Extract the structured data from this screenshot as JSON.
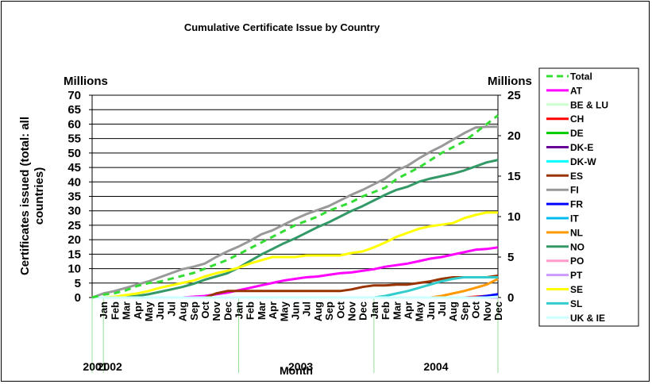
{
  "chart_data": {
    "type": "line",
    "title": "Cumulative Certificate Issue by Country",
    "xlabel": "Month",
    "ylabel": "Certificates issued (total: all countries)",
    "y_unit_left": "Millions",
    "y_unit_right": "Millions",
    "ylim_left": [
      0,
      70
    ],
    "ylim_right": [
      0,
      25
    ],
    "yticks_left": [
      "0",
      "5",
      "10",
      "15",
      "20",
      "25",
      "30",
      "35",
      "40",
      "45",
      "50",
      "55",
      "60",
      "65",
      "70"
    ],
    "yticks_right": [
      "0",
      "5",
      "10",
      "15",
      "20",
      "25"
    ],
    "grid": true,
    "legend_position": "right",
    "year_labels": [
      "2001",
      "2002",
      "2003",
      "2004"
    ],
    "month_labels": [
      "Jan",
      "Feb",
      "Mar",
      "Apr",
      "May",
      "Jun",
      "Jul",
      "Aug",
      "Sep",
      "Oct",
      "Nov",
      "Dec",
      "Jan",
      "Feb",
      "Mar",
      "Apr",
      "May",
      "Jun",
      "Jul",
      "Aug",
      "Sep",
      "Oct",
      "Nov",
      "Dec",
      "Jan",
      "Feb",
      "Mar",
      "Apr",
      "May",
      "Jun",
      "Jul",
      "Aug",
      "Sep",
      "Oct",
      "Nov",
      "Dec"
    ],
    "x_periods": [
      "2001-Dec",
      "2002-Jan",
      "2002-Feb",
      "2002-Mar",
      "2002-Apr",
      "2002-May",
      "2002-Jun",
      "2002-Jul",
      "2002-Aug",
      "2002-Sep",
      "2002-Oct",
      "2002-Nov",
      "2002-Dec",
      "2003-Jan",
      "2003-Feb",
      "2003-Mar",
      "2003-Apr",
      "2003-May",
      "2003-Jun",
      "2003-Jul",
      "2003-Aug",
      "2003-Sep",
      "2003-Oct",
      "2003-Nov",
      "2003-Dec",
      "2004-Jan",
      "2004-Feb",
      "2004-Mar",
      "2004-Apr",
      "2004-May",
      "2004-Jun",
      "2004-Jul",
      "2004-Aug",
      "2004-Sep",
      "2004-Oct",
      "2004-Nov",
      "2004-Dec"
    ],
    "series": [
      {
        "name": "Total",
        "axis": "left",
        "color": "#33dd33",
        "dash": true,
        "values": [
          0,
          1,
          1.5,
          2.5,
          4,
          5,
          5.5,
          6.5,
          7.5,
          8.5,
          10,
          11.5,
          13,
          15,
          17,
          19,
          21,
          23,
          25,
          26.5,
          28,
          30,
          31.5,
          33,
          35,
          36.5,
          38,
          41,
          43,
          45,
          47.5,
          50,
          52,
          54,
          57,
          60,
          63
        ]
      },
      {
        "name": "AT",
        "axis": "right",
        "color": "#ff00ff",
        "values": [
          0,
          0,
          0,
          0,
          0,
          0,
          0,
          0,
          0,
          0.1,
          0.2,
          0.4,
          0.6,
          0.9,
          1.2,
          1.5,
          1.8,
          2.1,
          2.3,
          2.5,
          2.6,
          2.8,
          3.0,
          3.1,
          3.3,
          3.5,
          3.8,
          4.0,
          4.2,
          4.5,
          4.8,
          5.0,
          5.3,
          5.6,
          5.9,
          6.0,
          6.2
        ]
      },
      {
        "name": "BE & LU",
        "axis": "right",
        "color": "#ccffcc",
        "values": [
          0,
          0,
          0,
          0,
          0,
          0,
          0,
          0,
          0,
          0,
          0,
          0,
          0,
          0,
          0,
          0,
          0,
          0,
          0,
          0,
          0,
          0,
          0,
          0,
          0,
          0,
          0,
          0,
          0,
          0,
          0,
          0,
          0,
          0,
          0,
          0,
          0
        ]
      },
      {
        "name": "CH",
        "axis": "right",
        "color": "#ff0000",
        "values": [
          0,
          0,
          0,
          0,
          0,
          0,
          0,
          0,
          0,
          0,
          0,
          0,
          0,
          0,
          0,
          0,
          0,
          0,
          0,
          0,
          0,
          0,
          0,
          0,
          0,
          0,
          0,
          0,
          0,
          0,
          0,
          0,
          0,
          0,
          0.1,
          0.2,
          0.3
        ]
      },
      {
        "name": "DE",
        "axis": "right",
        "color": "#00cc00",
        "values": [
          0,
          0,
          0,
          0,
          0,
          0,
          0,
          0,
          0,
          0,
          0,
          0,
          0,
          0,
          0,
          0,
          0,
          0,
          0,
          0,
          0,
          0,
          0,
          0,
          0,
          0,
          0,
          0,
          0,
          0,
          0,
          0,
          0,
          0,
          0,
          0.1,
          0.2
        ]
      },
      {
        "name": "DK-E",
        "axis": "right",
        "color": "#660099",
        "values": [
          0,
          0,
          0,
          0,
          0,
          0,
          0,
          0,
          0,
          0,
          0,
          0,
          0,
          0,
          0,
          0,
          0,
          0,
          0,
          0,
          0,
          0,
          0,
          0,
          0,
          0,
          0,
          0,
          0,
          0,
          0,
          0,
          0,
          0,
          0,
          0,
          0
        ]
      },
      {
        "name": "DK-W",
        "axis": "right",
        "color": "#00ffff",
        "values": [
          0,
          0,
          0,
          0,
          0,
          0,
          0,
          0,
          0,
          0,
          0,
          0,
          0,
          0,
          0,
          0,
          0,
          0,
          0,
          0,
          0,
          0,
          0,
          0,
          0,
          0,
          0,
          0,
          0,
          0,
          0,
          0,
          0,
          0,
          0,
          0,
          0
        ]
      },
      {
        "name": "ES",
        "axis": "right",
        "color": "#993300",
        "values": [
          0,
          0,
          0,
          0,
          0,
          0,
          0,
          0,
          0,
          0,
          0,
          0.5,
          0.8,
          0.8,
          0.8,
          0.8,
          0.8,
          0.8,
          0.8,
          0.8,
          0.8,
          0.8,
          0.8,
          1.0,
          1.3,
          1.5,
          1.5,
          1.6,
          1.6,
          1.8,
          2.0,
          2.3,
          2.5,
          2.5,
          2.5,
          2.5,
          2.7
        ]
      },
      {
        "name": "FI",
        "axis": "right",
        "color": "#999999",
        "values": [
          0,
          0.5,
          0.8,
          1.2,
          1.6,
          2.0,
          2.5,
          3.0,
          3.5,
          3.8,
          4.2,
          5.0,
          5.7,
          6.3,
          7.0,
          7.8,
          8.3,
          9.0,
          9.7,
          10.3,
          10.8,
          11.3,
          12.0,
          12.7,
          13.3,
          14.0,
          14.7,
          15.7,
          16.3,
          17.2,
          18.0,
          18.7,
          19.5,
          20.3,
          21.0,
          21.1,
          21.1
        ]
      },
      {
        "name": "FR",
        "axis": "right",
        "color": "#0000ff",
        "values": [
          0,
          0,
          0,
          0,
          0,
          0,
          0,
          0,
          0,
          0,
          0,
          0,
          0,
          0,
          0,
          0,
          0,
          0,
          0,
          0,
          0,
          0,
          0,
          0,
          0,
          0,
          0,
          0,
          0,
          0,
          0,
          0,
          0,
          0,
          0,
          0.2,
          0.4
        ]
      },
      {
        "name": "IT",
        "axis": "right",
        "color": "#00bbee",
        "values": [
          0,
          0,
          0,
          0,
          0,
          0,
          0,
          0,
          0,
          0,
          0,
          0,
          0,
          0,
          0,
          0,
          0,
          0,
          0,
          0,
          0,
          0,
          0,
          0,
          0,
          0,
          0,
          0,
          0,
          0,
          0,
          0,
          0,
          0,
          0,
          0,
          0
        ]
      },
      {
        "name": "NL",
        "axis": "right",
        "color": "#ff9900",
        "values": [
          0,
          0,
          0,
          0,
          0,
          0,
          0,
          0,
          0,
          0,
          0,
          0,
          0,
          0,
          0,
          0,
          0,
          0,
          0,
          0,
          0,
          0,
          0,
          0,
          0,
          0,
          0,
          0,
          0,
          0,
          0,
          0.2,
          0.5,
          0.8,
          1.2,
          1.6,
          2.3
        ]
      },
      {
        "name": "NO",
        "axis": "right",
        "color": "#339966",
        "values": [
          0,
          0,
          0,
          0.1,
          0.2,
          0.4,
          0.7,
          1.0,
          1.3,
          1.7,
          2.2,
          2.6,
          3.0,
          3.7,
          4.5,
          5.3,
          6.0,
          6.7,
          7.3,
          8.0,
          8.7,
          9.3,
          10.0,
          10.7,
          11.3,
          12.0,
          12.7,
          13.3,
          13.7,
          14.3,
          14.7,
          15.0,
          15.3,
          15.7,
          16.2,
          16.7,
          17.0
        ]
      },
      {
        "name": "PO",
        "axis": "right",
        "color": "#ff99cc",
        "values": [
          0,
          0,
          0,
          0,
          0,
          0,
          0,
          0,
          0,
          0,
          0,
          0,
          0,
          0,
          0,
          0,
          0,
          0,
          0,
          0,
          0,
          0,
          0,
          0,
          0,
          0,
          0,
          0,
          0,
          0,
          0,
          0,
          0,
          0,
          0,
          0,
          0
        ]
      },
      {
        "name": "PT",
        "axis": "right",
        "color": "#cc99ff",
        "values": [
          0,
          0,
          0,
          0,
          0,
          0,
          0,
          0,
          0,
          0,
          0,
          0,
          0,
          0,
          0,
          0,
          0,
          0,
          0,
          0,
          0,
          0,
          0,
          0,
          0,
          0,
          0,
          0,
          0,
          0,
          0,
          0,
          0,
          0,
          0,
          0,
          0
        ]
      },
      {
        "name": "SE",
        "axis": "right",
        "color": "#ffff00",
        "values": [
          0,
          0,
          0.1,
          0.3,
          0.5,
          0.8,
          1.2,
          1.5,
          1.8,
          2.1,
          2.6,
          3.0,
          3.3,
          3.7,
          4.2,
          4.6,
          5.0,
          5.0,
          5.0,
          5.2,
          5.2,
          5.2,
          5.2,
          5.5,
          5.7,
          6.2,
          6.8,
          7.5,
          8.0,
          8.5,
          8.8,
          9.0,
          9.2,
          9.8,
          10.2,
          10.5,
          10.5
        ]
      },
      {
        "name": "SL",
        "axis": "right",
        "color": "#33cccc",
        "values": [
          0,
          0,
          0,
          0,
          0,
          0,
          0,
          0,
          0,
          0,
          0,
          0,
          0,
          0,
          0,
          0,
          0,
          0,
          0,
          0,
          0,
          0,
          0,
          0,
          0,
          0,
          0.2,
          0.5,
          0.8,
          1.2,
          1.6,
          2.0,
          2.3,
          2.5,
          2.5,
          2.5,
          2.5
        ]
      },
      {
        "name": "UK & IE",
        "axis": "right",
        "color": "#ccffff",
        "values": [
          0,
          0,
          0,
          0,
          0,
          0,
          0,
          0,
          0,
          0,
          0,
          0,
          0,
          0,
          0,
          0,
          0,
          0,
          0,
          0,
          0,
          0,
          0,
          0,
          0,
          0,
          0,
          0,
          0,
          0,
          0,
          0,
          0,
          0,
          0,
          0,
          0.1
        ]
      }
    ]
  }
}
